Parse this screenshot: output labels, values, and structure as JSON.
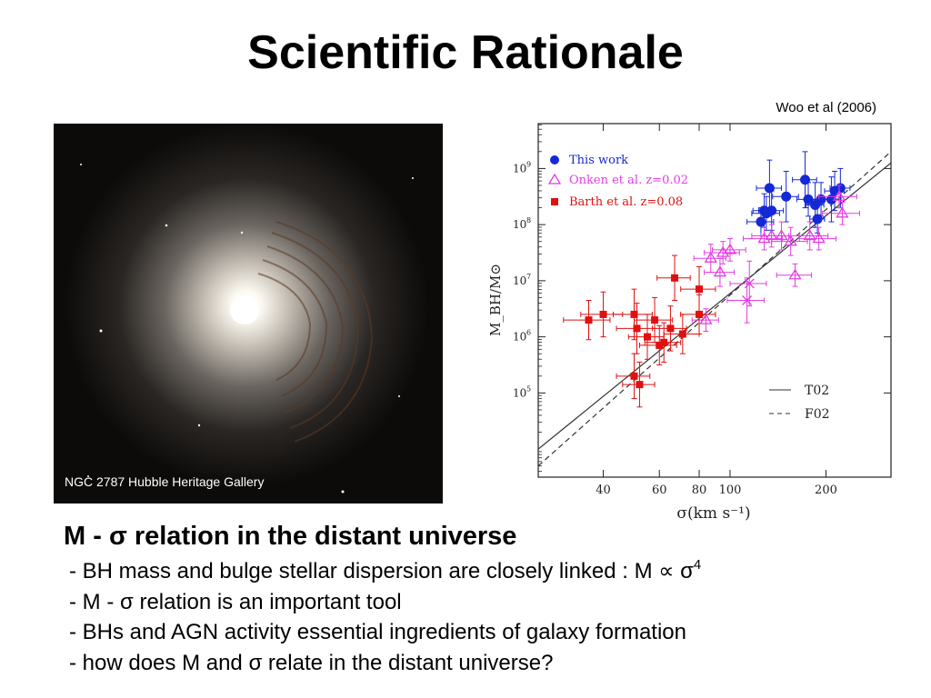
{
  "slide": {
    "title": "Scientific Rationale",
    "citation": "Woo et al (2006)"
  },
  "image": {
    "caption": "NGC 2787 Hubble Heritage Gallery"
  },
  "section": {
    "heading_pre": "M - ",
    "heading_sym": "σ",
    "heading_post": " relation in the distant universe",
    "bullets": [
      {
        "pre": "- BH mass and bulge stellar dispersion are closely linked : M ",
        "sym1": "∝",
        "mid": " ",
        "sym2": "σ",
        "sup": "4",
        "post": ""
      },
      {
        "pre": "- M - ",
        "sym1": "σ",
        "mid": "",
        "sym2": "",
        "sup": "",
        "post": " relation is an important tool"
      },
      {
        "pre": "- BHs and AGN activity essential ingredients of galaxy formation",
        "sym1": "",
        "mid": "",
        "sym2": "",
        "sup": "",
        "post": ""
      },
      {
        "pre": "- how does M and ",
        "sym1": "σ",
        "mid": "",
        "sym2": "",
        "sup": "",
        "post": " relate in the distant universe?"
      }
    ]
  },
  "chart_data": {
    "type": "scatter",
    "x_scale": "log",
    "y_scale": "log",
    "xlim": [
      25,
      320
    ],
    "ylim": [
      3.5,
      9.8
    ],
    "x_ticks": [
      {
        "value": 40,
        "label": "40"
      },
      {
        "value": 60,
        "label": "60"
      },
      {
        "value": 80,
        "label": "80"
      },
      {
        "value": 100,
        "label": "100"
      },
      {
        "value": 200,
        "label": "200"
      }
    ],
    "y_ticks": [
      {
        "value": 5,
        "base": "10",
        "exp": "5"
      },
      {
        "value": 6,
        "base": "10",
        "exp": "6"
      },
      {
        "value": 7,
        "base": "10",
        "exp": "7"
      },
      {
        "value": 8,
        "base": "10",
        "exp": "8"
      },
      {
        "value": 9,
        "base": "10",
        "exp": "9"
      }
    ],
    "xlabel": "σ(km  s⁻¹)",
    "ylabel": "M_BH/M⊙",
    "legend": [
      {
        "label": "This work",
        "marker": "circle",
        "color": "#1528d6"
      },
      {
        "label": "Onken et al. z=0.02",
        "marker": "triangle",
        "color": "#e43ce4"
      },
      {
        "label": "Barth et al. z=0.08",
        "marker": "square",
        "color": "#e01010"
      }
    ],
    "lines_legend": [
      {
        "label": "T02",
        "style": "solid"
      },
      {
        "label": "F02",
        "style": "dashed"
      }
    ],
    "lines": [
      {
        "name": "T02",
        "style": "solid",
        "points": [
          [
            25,
            4.0
          ],
          [
            320,
            9.1
          ]
        ]
      },
      {
        "name": "F02",
        "style": "dashed",
        "points": [
          [
            25,
            3.7
          ],
          [
            320,
            9.3
          ]
        ]
      }
    ],
    "series": [
      {
        "name": "This work",
        "marker": "circle",
        "color": "#1528d6",
        "points": [
          {
            "x": 125,
            "y": 8.05,
            "xe": 12,
            "ye": 0.25
          },
          {
            "x": 130,
            "y": 8.2,
            "xe": 13,
            "ye": 0.3
          },
          {
            "x": 128,
            "y": 8.25,
            "xe": 10,
            "ye": 0.3
          },
          {
            "x": 135,
            "y": 8.25,
            "xe": 12,
            "ye": 0.35
          },
          {
            "x": 133,
            "y": 8.65,
            "xe": 12,
            "ye": 0.5
          },
          {
            "x": 150,
            "y": 8.5,
            "xe": 14,
            "ye": 0.45
          },
          {
            "x": 172,
            "y": 8.8,
            "xe": 15,
            "ye": 0.5
          },
          {
            "x": 176,
            "y": 8.45,
            "xe": 14,
            "ye": 0.3
          },
          {
            "x": 185,
            "y": 8.35,
            "xe": 12,
            "ye": 0.4
          },
          {
            "x": 188,
            "y": 8.1,
            "xe": 10,
            "ye": 0.25
          },
          {
            "x": 193,
            "y": 8.45,
            "xe": 14,
            "ye": 0.3
          },
          {
            "x": 208,
            "y": 8.45,
            "xe": 15,
            "ye": 0.4
          },
          {
            "x": 213,
            "y": 8.6,
            "xe": 15,
            "ye": 0.35
          },
          {
            "x": 222,
            "y": 8.65,
            "xe": 16,
            "ye": 0.35
          }
        ]
      },
      {
        "name": "Onken et al. z=0.02",
        "marker": "triangle",
        "color": "#e43ce4",
        "points": [
          {
            "x": 84,
            "y": 6.3,
            "xe": 8,
            "ye": 0.2
          },
          {
            "x": 87,
            "y": 7.4,
            "xe": 10,
            "ye": 0.25
          },
          {
            "x": 93,
            "y": 7.15,
            "xe": 10,
            "ye": 0.25
          },
          {
            "x": 95,
            "y": 7.5,
            "xe": 12,
            "ye": 0.2
          },
          {
            "x": 100,
            "y": 7.55,
            "xe": 12,
            "ye": 0.2
          },
          {
            "x": 115,
            "y": 6.95,
            "xe": 15,
            "ye": 0.4,
            "cross": true
          },
          {
            "x": 113,
            "y": 6.65,
            "xe": 15,
            "ye": 0.4,
            "cross": true
          },
          {
            "x": 128,
            "y": 7.75,
            "xe": 18,
            "ye": 0.2
          },
          {
            "x": 135,
            "y": 7.8,
            "xe": 18,
            "ye": 0.2
          },
          {
            "x": 145,
            "y": 7.8,
            "xe": 20,
            "ye": 0.25
          },
          {
            "x": 155,
            "y": 7.7,
            "xe": 20,
            "ye": 0.25
          },
          {
            "x": 160,
            "y": 7.1,
            "xe": 20,
            "ye": 0.2
          },
          {
            "x": 178,
            "y": 7.8,
            "xe": 25,
            "ye": 0.25
          },
          {
            "x": 190,
            "y": 7.75,
            "xe": 25,
            "ye": 0.2
          },
          {
            "x": 220,
            "y": 8.5,
            "xe": 30,
            "ye": 0.2
          },
          {
            "x": 225,
            "y": 8.2,
            "xe": 30,
            "ye": 0.2
          }
        ]
      },
      {
        "name": "Barth et al. z=0.08",
        "marker": "square",
        "color": "#e01010",
        "points": [
          {
            "x": 36,
            "y": 6.3,
            "xe": 6,
            "ye": 0.35
          },
          {
            "x": 40,
            "y": 6.4,
            "xe": 6,
            "ye": 0.4
          },
          {
            "x": 50,
            "y": 6.4,
            "xe": 7,
            "ye": 0.45
          },
          {
            "x": 51,
            "y": 6.15,
            "xe": 7,
            "ye": 0.45
          },
          {
            "x": 50,
            "y": 5.3,
            "xe": 6,
            "ye": 0.4
          },
          {
            "x": 52,
            "y": 5.15,
            "xe": 6,
            "ye": 0.4
          },
          {
            "x": 55,
            "y": 6.0,
            "xe": 7,
            "ye": 0.4
          },
          {
            "x": 58,
            "y": 6.3,
            "xe": 8,
            "ye": 0.4
          },
          {
            "x": 60,
            "y": 5.85,
            "xe": 8,
            "ye": 0.35
          },
          {
            "x": 62,
            "y": 5.9,
            "xe": 8,
            "ye": 0.35
          },
          {
            "x": 65,
            "y": 6.15,
            "xe": 8,
            "ye": 0.4
          },
          {
            "x": 67,
            "y": 7.05,
            "xe": 8,
            "ye": 0.4
          },
          {
            "x": 71,
            "y": 6.05,
            "xe": 9,
            "ye": 0.35
          },
          {
            "x": 80,
            "y": 6.85,
            "xe": 10,
            "ye": 0.4
          },
          {
            "x": 80,
            "y": 6.4,
            "xe": 10,
            "ye": 0.35
          }
        ]
      }
    ]
  }
}
